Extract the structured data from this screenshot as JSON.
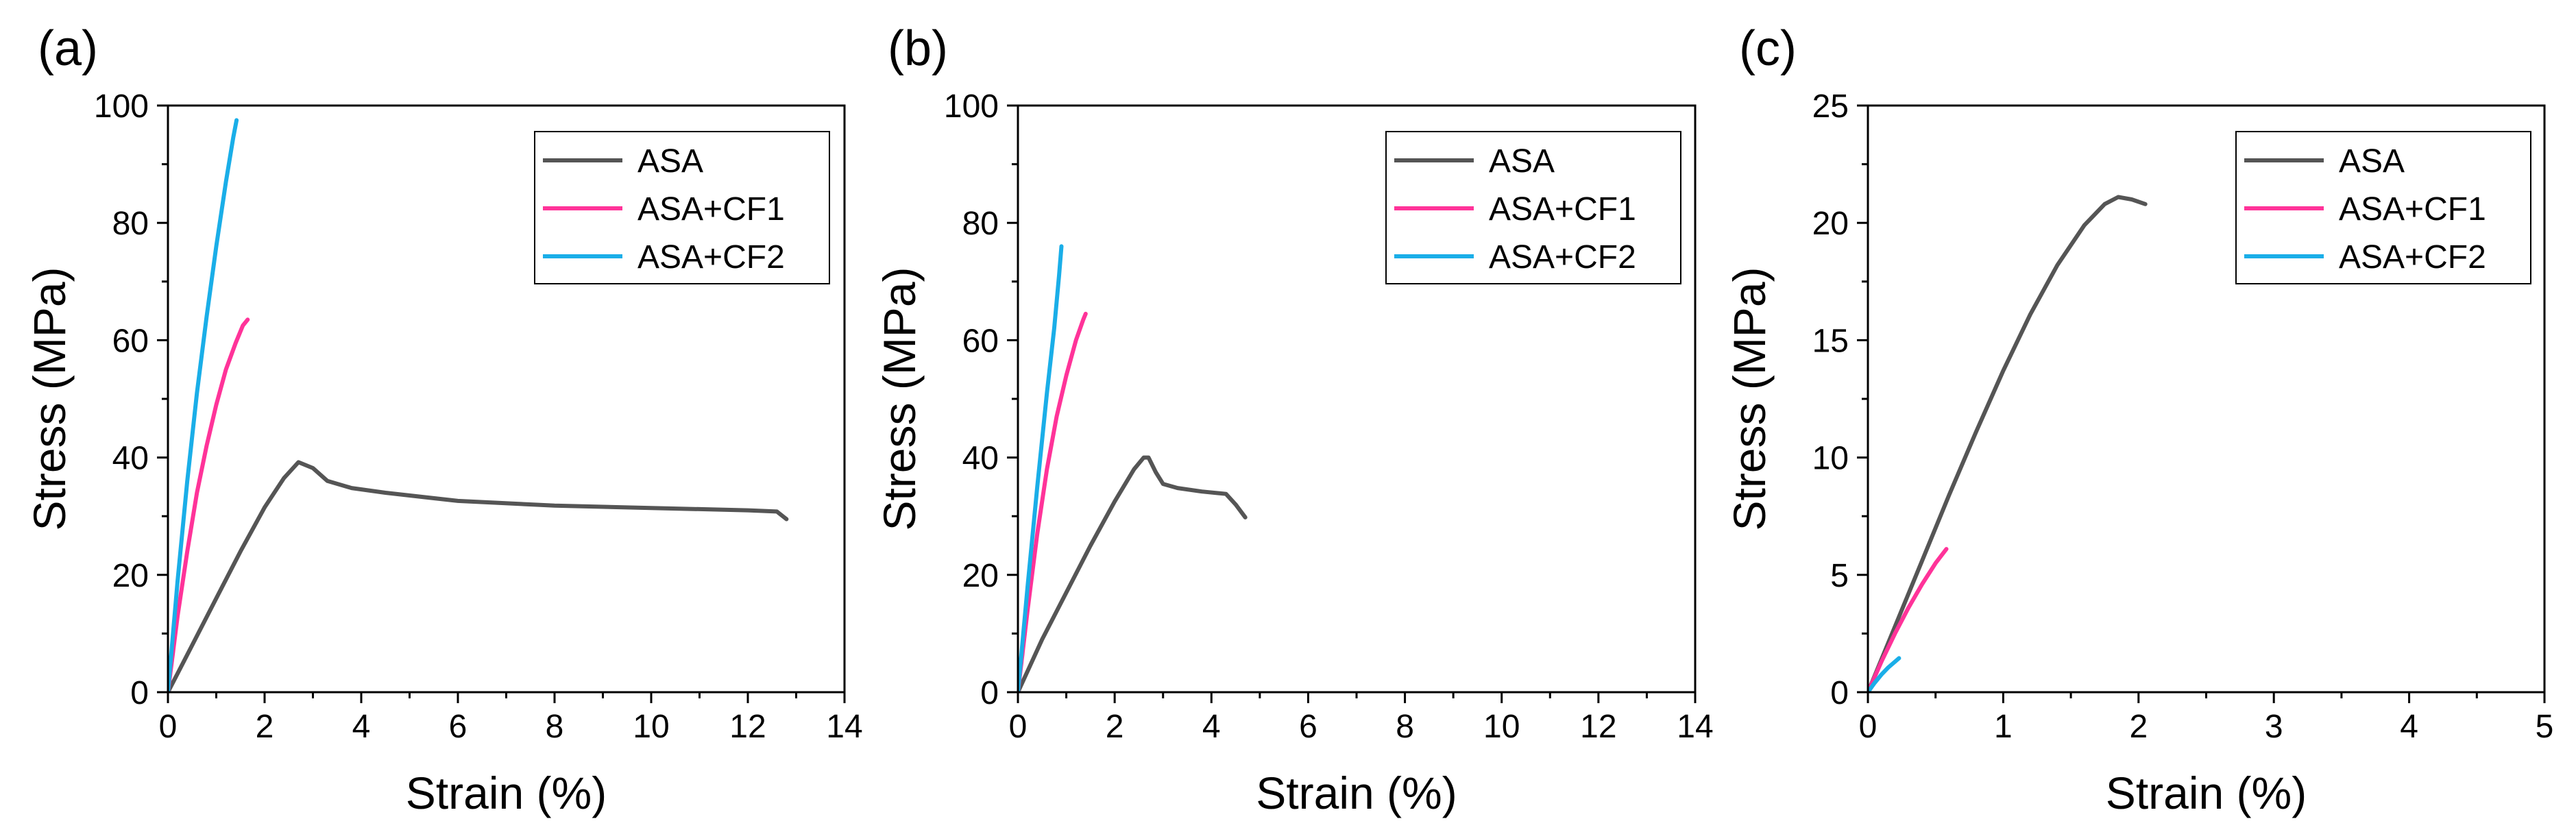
{
  "chart_data": [
    {
      "type": "line",
      "panel_label": "(a)",
      "xlabel": "Strain (%)",
      "ylabel": "Stress (MPa)",
      "xlim": [
        0,
        14
      ],
      "ylim": [
        0,
        100
      ],
      "xticks": [
        "0",
        "2",
        "4",
        "6",
        "8",
        "10",
        "12",
        "14"
      ],
      "yticks": [
        "0",
        "20",
        "40",
        "60",
        "80",
        "100"
      ],
      "legend_position": "top-right",
      "series": [
        {
          "name": "ASA",
          "color": "#555555",
          "x": [
            0,
            0.5,
            1.0,
            1.5,
            2.0,
            2.4,
            2.7,
            3.0,
            3.3,
            3.8,
            4.5,
            6.0,
            8.0,
            10.0,
            12.0,
            12.6,
            12.8
          ],
          "y": [
            0,
            8,
            16,
            24,
            31.5,
            36.5,
            39.2,
            38.2,
            36.0,
            34.8,
            34.0,
            32.6,
            31.8,
            31.4,
            31.0,
            30.8,
            29.5
          ]
        },
        {
          "name": "ASA+CF1",
          "color": "#ff3399",
          "x": [
            0,
            0.2,
            0.4,
            0.6,
            0.8,
            1.0,
            1.2,
            1.4,
            1.55,
            1.65
          ],
          "y": [
            0,
            13,
            24,
            34,
            42,
            49,
            55,
            59.5,
            62.5,
            63.5
          ]
        },
        {
          "name": "ASA+CF2",
          "color": "#1aaee8",
          "x": [
            0,
            0.2,
            0.4,
            0.6,
            0.8,
            1.0,
            1.2,
            1.35,
            1.42
          ],
          "y": [
            0,
            19,
            36,
            51,
            64,
            76,
            87,
            94.5,
            97.5
          ]
        }
      ]
    },
    {
      "type": "line",
      "panel_label": "(b)",
      "xlabel": "Strain (%)",
      "ylabel": "Stress (MPa)",
      "xlim": [
        0,
        14
      ],
      "ylim": [
        0,
        100
      ],
      "xticks": [
        "0",
        "2",
        "4",
        "6",
        "8",
        "10",
        "12",
        "14"
      ],
      "yticks": [
        "0",
        "20",
        "40",
        "60",
        "80",
        "100"
      ],
      "legend_position": "top-right",
      "series": [
        {
          "name": "ASA",
          "color": "#555555",
          "x": [
            0,
            0.5,
            1.0,
            1.5,
            2.0,
            2.4,
            2.6,
            2.7,
            2.85,
            3.0,
            3.3,
            3.8,
            4.3,
            4.5,
            4.7
          ],
          "y": [
            0,
            9,
            17,
            25,
            32.5,
            38.0,
            40.0,
            40.0,
            37.5,
            35.5,
            34.8,
            34.2,
            33.8,
            32.0,
            29.8
          ]
        },
        {
          "name": "ASA+CF1",
          "color": "#ff3399",
          "x": [
            0,
            0.2,
            0.4,
            0.6,
            0.8,
            1.0,
            1.2,
            1.35,
            1.4
          ],
          "y": [
            0,
            14,
            27,
            38,
            47,
            54,
            60,
            63.5,
            64.5
          ]
        },
        {
          "name": "ASA+CF2",
          "color": "#1aaee8",
          "x": [
            0,
            0.2,
            0.4,
            0.6,
            0.75,
            0.85,
            0.9
          ],
          "y": [
            0,
            18,
            35,
            51,
            62,
            71,
            76
          ]
        }
      ]
    },
    {
      "type": "line",
      "panel_label": "(c)",
      "xlabel": "Strain (%)",
      "ylabel": "Stress (MPa)",
      "xlim": [
        0,
        5
      ],
      "ylim": [
        0,
        25
      ],
      "xticks": [
        "0",
        "1",
        "2",
        "3",
        "4",
        "5"
      ],
      "yticks": [
        "0",
        "5",
        "10",
        "15",
        "20",
        "25"
      ],
      "legend_position": "top-right",
      "series": [
        {
          "name": "ASA",
          "color": "#555555",
          "x": [
            0,
            0.2,
            0.4,
            0.6,
            0.8,
            1.0,
            1.2,
            1.4,
            1.6,
            1.75,
            1.85,
            1.95,
            2.05
          ],
          "y": [
            0,
            2.8,
            5.6,
            8.4,
            11.1,
            13.7,
            16.1,
            18.2,
            19.9,
            20.8,
            21.1,
            21.0,
            20.8
          ]
        },
        {
          "name": "ASA+CF1",
          "color": "#ff3399",
          "x": [
            0,
            0.1,
            0.2,
            0.3,
            0.4,
            0.5,
            0.58
          ],
          "y": [
            0,
            1.3,
            2.5,
            3.6,
            4.6,
            5.5,
            6.1
          ]
        },
        {
          "name": "ASA+CF2",
          "color": "#1aaee8",
          "x": [
            0,
            0.05,
            0.1,
            0.15,
            0.2,
            0.23
          ],
          "y": [
            0,
            0.4,
            0.75,
            1.05,
            1.3,
            1.45
          ]
        }
      ]
    }
  ]
}
